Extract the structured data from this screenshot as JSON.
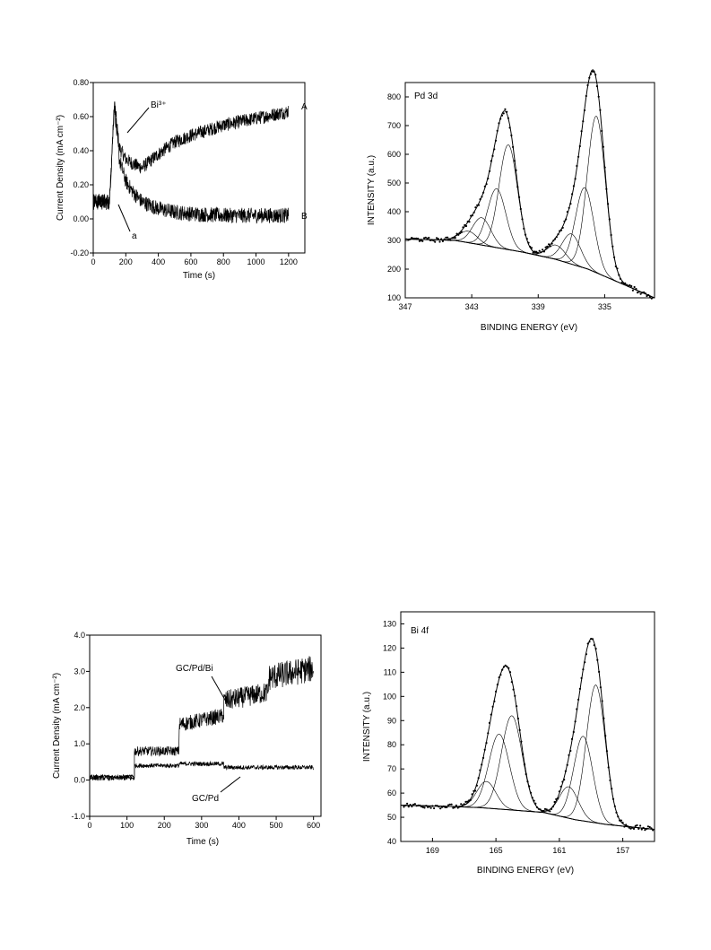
{
  "chart_data": [
    {
      "id": "ca",
      "type": "line",
      "xlabel": "Time (s)",
      "ylabel": "Current Density (mA cm⁻²)",
      "xlim": [
        0,
        1300
      ],
      "ylim": [
        -0.2,
        0.8
      ],
      "xticks": [
        "0",
        "200",
        "400",
        "600",
        "800",
        "1000",
        "1200"
      ],
      "yticks": [
        "-0.20",
        "0.00",
        "0.20",
        "0.40",
        "0.60",
        "0.80"
      ],
      "series": [
        {
          "name": "A",
          "x": [
            0,
            100,
            130,
            140,
            160,
            200,
            250,
            300,
            350,
            400,
            500,
            600,
            700,
            800,
            900,
            1000,
            1100,
            1200
          ],
          "y": [
            0.1,
            0.1,
            0.68,
            0.6,
            0.42,
            0.35,
            0.32,
            0.3,
            0.34,
            0.38,
            0.45,
            0.49,
            0.52,
            0.55,
            0.57,
            0.59,
            0.61,
            0.63
          ]
        },
        {
          "name": "B",
          "x": [
            0,
            100,
            130,
            140,
            160,
            200,
            250,
            300,
            400,
            500,
            600,
            800,
            1000,
            1200
          ],
          "y": [
            0.1,
            0.1,
            0.68,
            0.55,
            0.35,
            0.22,
            0.15,
            0.1,
            0.06,
            0.04,
            0.03,
            0.02,
            0.02,
            0.02
          ]
        }
      ],
      "annotations": [
        {
          "text": "Bi³⁺",
          "x": 140,
          "y": 0.56
        },
        {
          "text": "a",
          "x": 120,
          "y": 0.08
        }
      ]
    },
    {
      "id": "pd",
      "type": "line",
      "title": "Pd 3d",
      "xlabel": "BINDING ENERGY (eV)",
      "ylabel": "INTENSITY (a.u.)",
      "xlim": [
        347,
        332
      ],
      "ylim": [
        100,
        850
      ],
      "xticks": [
        "347",
        "343",
        "339",
        "335"
      ],
      "yticks": [
        "100",
        "200",
        "300",
        "400",
        "500",
        "600",
        "700",
        "800"
      ],
      "background": {
        "x": [
          347,
          344,
          342,
          340,
          338,
          336,
          334,
          332
        ],
        "y": [
          305,
          300,
          280,
          260,
          235,
          200,
          150,
          100
        ]
      },
      "peaks": [
        {
          "center": 343.2,
          "height": 40,
          "width": 0.55
        },
        {
          "center": 342.4,
          "height": 95,
          "width": 0.55
        },
        {
          "center": 341.5,
          "height": 205,
          "width": 0.55
        },
        {
          "center": 340.8,
          "height": 365,
          "width": 0.55
        },
        {
          "center": 337.9,
          "height": 50,
          "width": 0.55
        },
        {
          "center": 337.0,
          "height": 105,
          "width": 0.55
        },
        {
          "center": 336.2,
          "height": 280,
          "width": 0.55
        },
        {
          "center": 335.5,
          "height": 545,
          "width": 0.55
        }
      ]
    },
    {
      "id": "steps",
      "type": "line",
      "xlabel": "Time (s)",
      "ylabel": "Current Density (mA cm⁻²)",
      "xlim": [
        0,
        620
      ],
      "ylim": [
        -1.0,
        4.0
      ],
      "xticks": [
        "0",
        "100",
        "200",
        "300",
        "400",
        "500",
        "600"
      ],
      "yticks": [
        "-1.0",
        "0.0",
        "1.0",
        "2.0",
        "3.0",
        "4.0"
      ],
      "series": [
        {
          "name": "GC/Pd/Bi",
          "steps": [
            [
              0,
              120,
              0.1
            ],
            [
              120,
              240,
              0.8
            ],
            [
              240,
              360,
              1.65
            ],
            [
              360,
              480,
              2.3
            ],
            [
              480,
              600,
              2.95
            ]
          ]
        },
        {
          "name": "GC/Pd",
          "steps": [
            [
              0,
              120,
              0.05
            ],
            [
              120,
              240,
              0.4
            ],
            [
              240,
              360,
              0.45
            ],
            [
              360,
              480,
              0.35
            ],
            [
              480,
              600,
              0.35
            ]
          ]
        }
      ],
      "annotations": [
        {
          "text": "GC/Pd/Bi",
          "x": 250,
          "y": 2.45
        },
        {
          "text": "GC/Pd",
          "x": 280,
          "y": -0.75
        }
      ]
    },
    {
      "id": "bi",
      "type": "line",
      "title": "Bi 4f",
      "xlabel": "BINDING ENERGY (eV)",
      "ylabel": "INTENSITY (a.u.)",
      "xlim": [
        171,
        155
      ],
      "ylim": [
        40,
        135
      ],
      "xticks": [
        "169",
        "165",
        "161",
        "157"
      ],
      "yticks": [
        "40",
        "50",
        "60",
        "70",
        "80",
        "90",
        "100",
        "110",
        "120",
        "130"
      ],
      "background": {
        "x": [
          171,
          168,
          166,
          164,
          162,
          160,
          158,
          155
        ],
        "y": [
          55,
          54.5,
          54,
          53,
          52,
          49,
          47,
          45
        ]
      },
      "peaks": [
        {
          "center": 165.6,
          "height": 11,
          "width": 0.6
        },
        {
          "center": 164.8,
          "height": 31,
          "width": 0.65
        },
        {
          "center": 164.0,
          "height": 39,
          "width": 0.65
        },
        {
          "center": 160.4,
          "height": 13,
          "width": 0.6
        },
        {
          "center": 159.5,
          "height": 35,
          "width": 0.6
        },
        {
          "center": 158.7,
          "height": 57,
          "width": 0.6
        }
      ]
    }
  ]
}
